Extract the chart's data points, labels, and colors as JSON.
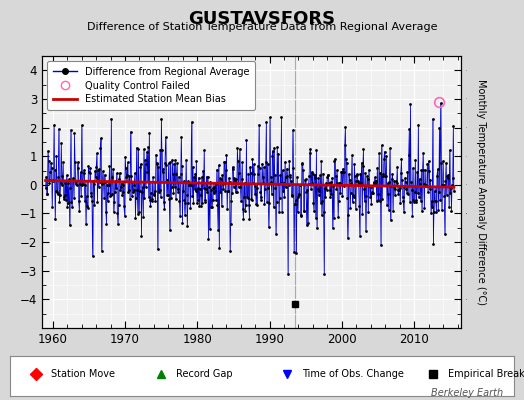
{
  "title": "GUSTAVSFORS",
  "subtitle": "Difference of Station Temperature Data from Regional Average",
  "ylabel": "Monthly Temperature Anomaly Difference (°C)",
  "xlim": [
    1958.5,
    2016.5
  ],
  "ylim": [
    -5,
    4.5
  ],
  "yticks": [
    -4,
    -3,
    -2,
    -1,
    0,
    1,
    2,
    3,
    4
  ],
  "xticks": [
    1960,
    1970,
    1980,
    1990,
    2000,
    2010
  ],
  "bias_color": "#cc0000",
  "line_color": "#0000cc",
  "dot_color": "#000000",
  "plot_bg_color": "#f0f0f0",
  "fig_bg_color": "#d8d8d8",
  "empirical_break_x": 1993.5,
  "empirical_break_y": -4.15,
  "qc_fail_x": 2013.5,
  "qc_fail_y": 2.9,
  "watermark": "Berkeley Earth",
  "seed": 12345
}
